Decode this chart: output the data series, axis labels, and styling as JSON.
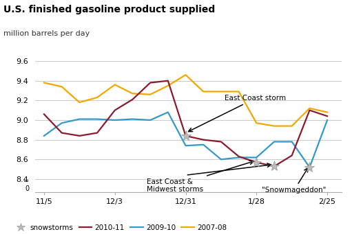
{
  "title": "U.S. finished gasoline product supplied",
  "subtitle": "million barrels per day",
  "colors": {
    "2010-11": "#8B1A2A",
    "2009-10": "#3399CC",
    "2007-08": "#F0A800"
  },
  "x_2010": [
    0,
    1,
    2,
    3,
    4,
    5,
    6,
    7,
    8,
    9,
    10,
    11,
    12,
    13,
    14,
    15,
    16
  ],
  "y_2010": [
    9.06,
    8.87,
    8.84,
    8.87,
    9.1,
    9.21,
    9.38,
    9.4,
    8.84,
    8.8,
    8.78,
    8.63,
    8.57,
    8.53,
    8.64,
    9.1,
    9.04
  ],
  "x_2009": [
    0,
    1,
    2,
    3,
    4,
    5,
    6,
    7,
    8,
    9,
    10,
    11,
    12,
    13,
    14,
    15,
    16
  ],
  "y_2009": [
    8.84,
    8.97,
    9.01,
    9.01,
    9.0,
    9.01,
    9.0,
    9.08,
    8.74,
    8.75,
    8.6,
    8.62,
    8.62,
    8.78,
    8.78,
    8.52,
    9.0
  ],
  "x_2007": [
    0,
    1,
    2,
    3,
    4,
    5,
    6,
    7,
    8,
    9,
    10,
    11,
    12,
    13,
    14,
    15,
    16
  ],
  "y_2007": [
    9.38,
    9.34,
    9.18,
    9.23,
    9.36,
    9.27,
    9.26,
    9.35,
    9.46,
    9.29,
    9.29,
    9.29,
    8.97,
    8.94,
    8.94,
    9.12,
    9.08
  ],
  "snow_positions": [
    [
      8,
      8.84
    ],
    [
      12,
      8.57
    ],
    [
      13,
      8.53
    ],
    [
      15,
      8.52
    ]
  ],
  "ylim": [
    8.27,
    9.65
  ],
  "yticks": [
    8.4,
    8.6,
    8.8,
    9.0,
    9.2,
    9.4,
    9.6
  ],
  "ytick_labels": [
    "8.4",
    "8.6",
    "8.8",
    "9.0",
    "9.2",
    "9.4",
    "9.6"
  ],
  "xtick_pos": [
    0,
    4,
    8,
    12,
    16
  ],
  "xtick_labels": [
    "11/5",
    "12/3",
    "12/31",
    "1/28",
    "2/25"
  ],
  "xlim": [
    -0.5,
    16.8
  ],
  "background_color": "#ffffff",
  "grid_color": "#cccccc",
  "linewidth": 1.6
}
